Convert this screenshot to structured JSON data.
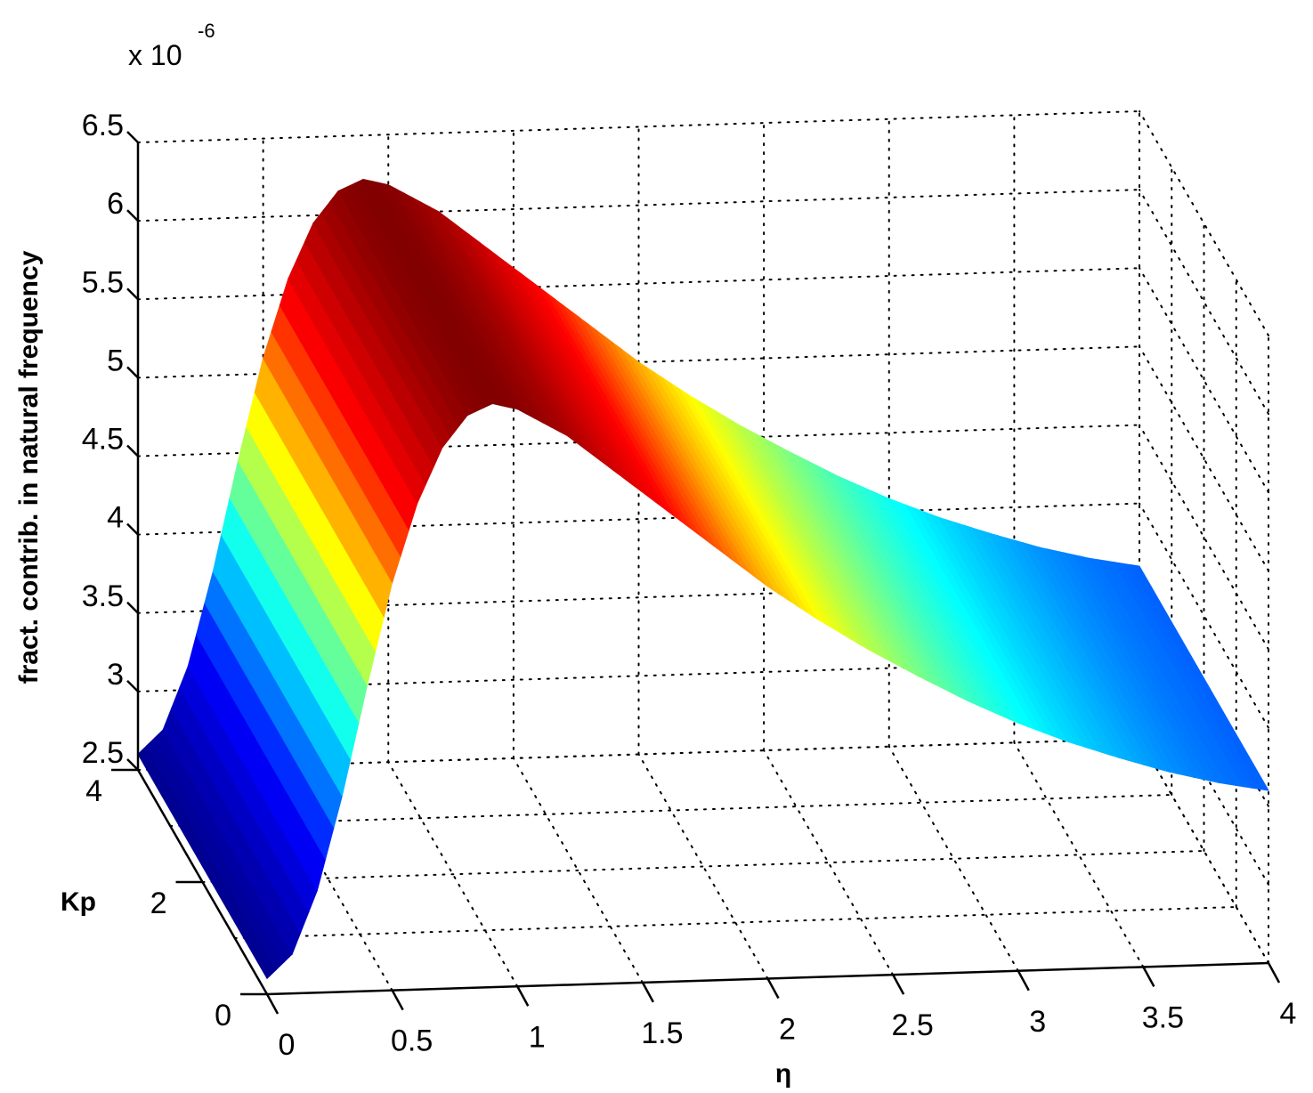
{
  "chart_data": {
    "type": "surface3d",
    "title": "",
    "exponent_label": "x 10",
    "exponent_power": "-6",
    "x_axis": {
      "label": "η",
      "range": [
        0,
        4
      ],
      "ticks": [
        "0",
        "0.5",
        "1",
        "1.5",
        "2",
        "2.5",
        "3",
        "3.5",
        "4"
      ]
    },
    "y_axis": {
      "label": "Kp",
      "range": [
        0,
        4
      ],
      "ticks": [
        "0",
        "2",
        "4"
      ]
    },
    "z_axis": {
      "label": "fract. contrib. in natural frequency",
      "range": [
        2.5,
        6.5
      ],
      "scale": 1e-06,
      "ticks": [
        "2.5",
        "3",
        "3.5",
        "4",
        "4.5",
        "5",
        "5.5",
        "6",
        "6.5"
      ]
    },
    "grid": true,
    "colormap": "jet",
    "colormap_stops": [
      "#00008f",
      "#0000ff",
      "#00ffff",
      "#ffff00",
      "#ff0000",
      "#800000"
    ],
    "surface_profile_vs_eta": {
      "eta": [
        0.0,
        0.1,
        0.2,
        0.3,
        0.4,
        0.5,
        0.6,
        0.7,
        0.8,
        0.9,
        1.0,
        1.2,
        1.4,
        1.6,
        1.8,
        2.0,
        2.2,
        2.4,
        2.6,
        2.8,
        3.0,
        3.2,
        3.4,
        3.6,
        3.8,
        4.0
      ],
      "value_e6": [
        2.6,
        2.75,
        3.15,
        3.75,
        4.45,
        5.1,
        5.6,
        5.95,
        6.15,
        6.22,
        6.18,
        6.0,
        5.75,
        5.5,
        5.25,
        5.0,
        4.78,
        4.58,
        4.4,
        4.23,
        4.08,
        3.95,
        3.84,
        3.74,
        3.66,
        3.6
      ]
    }
  }
}
